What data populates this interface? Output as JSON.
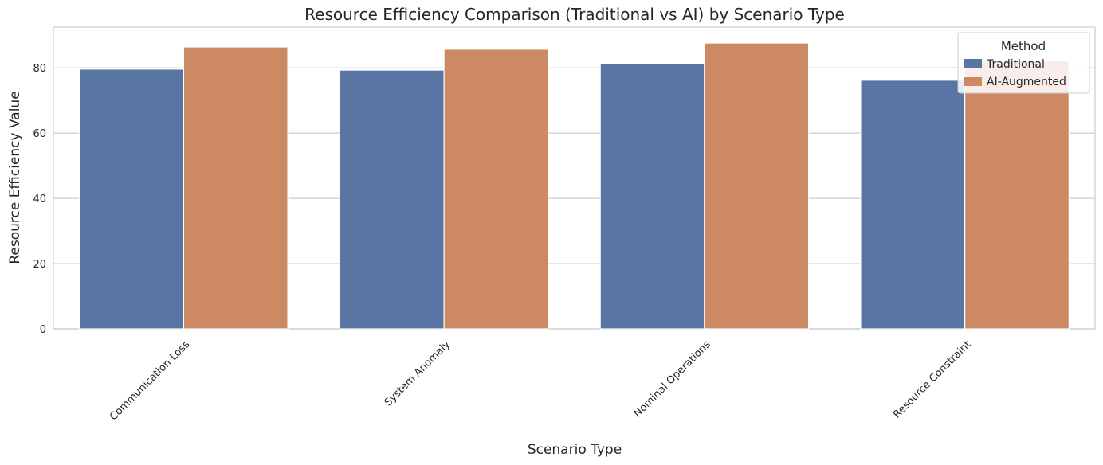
{
  "chart_data": {
    "type": "bar",
    "title": "Resource Efficiency Comparison (Traditional vs AI) by Scenario Type",
    "xlabel": "Scenario Type",
    "ylabel": "Resource Efficiency Value",
    "categories": [
      "Communication Loss",
      "System Anomaly",
      "Nominal Operations",
      "Resource Constraint"
    ],
    "series": [
      {
        "name": "Traditional",
        "color": "#5975a4",
        "values": [
          79.6,
          79.3,
          81.3,
          76.2
        ]
      },
      {
        "name": "AI-Augmented",
        "color": "#cc8963",
        "values": [
          86.4,
          85.7,
          87.6,
          82.4
        ]
      }
    ],
    "ylim": [
      0,
      92.5
    ],
    "yticks": [
      0,
      20,
      40,
      60,
      80
    ],
    "grid": true,
    "legend": {
      "title": "Method",
      "placement": "top-right"
    }
  }
}
